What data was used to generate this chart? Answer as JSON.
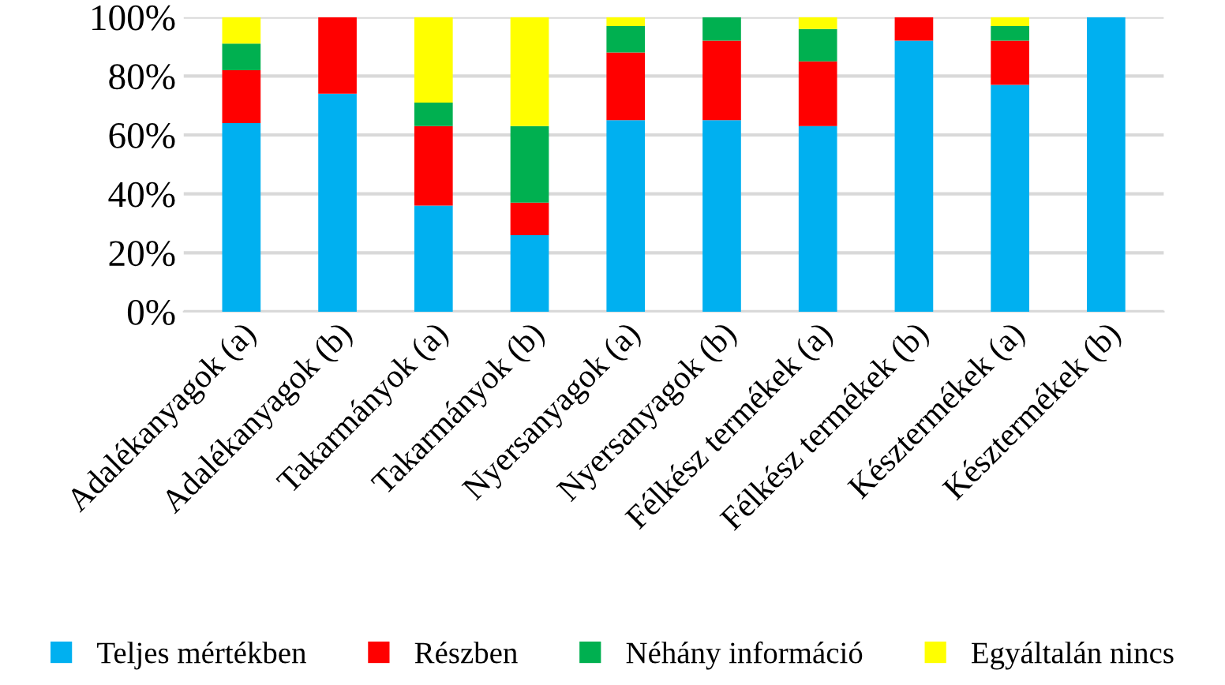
{
  "chart_data": {
    "type": "bar",
    "stacked": true,
    "categories": [
      "Adalékanyagok (a)",
      "Adalékanyagok (b)",
      "Takarmányok (a)",
      "Takarmányok (b)",
      "Nyersanyagok (a)",
      "Nyersanyagok (b)",
      "Félkész termékek (a)",
      "Félkész termékek (b)",
      "Késztermékek (a)",
      "Késztermékek (b)"
    ],
    "series": [
      {
        "name": "Teljes mértékben",
        "color": "#00b0f0",
        "values": [
          64,
          74,
          36,
          26,
          65,
          65,
          63,
          92,
          77,
          100
        ]
      },
      {
        "name": "Részben",
        "color": "#ff0000",
        "values": [
          18,
          26,
          27,
          11,
          23,
          27,
          22,
          8,
          15,
          0
        ]
      },
      {
        "name": "Néhány információ",
        "color": "#00b050",
        "values": [
          9,
          0,
          8,
          26,
          9,
          8,
          11,
          0,
          5,
          0
        ]
      },
      {
        "name": "Egyáltalán nincs",
        "color": "#ffff00",
        "values": [
          9,
          0,
          29,
          37,
          3,
          0,
          4,
          0,
          3,
          0
        ]
      }
    ],
    "ylim": [
      0,
      100
    ],
    "yticks": [
      {
        "value": 0,
        "label": "0%"
      },
      {
        "value": 20,
        "label": "20%"
      },
      {
        "value": 40,
        "label": "40%"
      },
      {
        "value": 60,
        "label": "60%"
      },
      {
        "value": 80,
        "label": "80%"
      },
      {
        "value": 100,
        "label": "100%"
      }
    ],
    "grid": "y",
    "legend": "bottom"
  }
}
